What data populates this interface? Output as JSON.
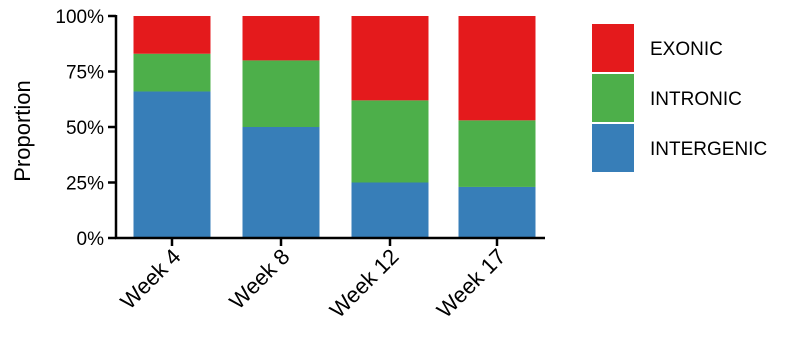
{
  "chart_data": {
    "type": "bar",
    "stacked": true,
    "categories": [
      "Week 4",
      "Week 8",
      "Week 12",
      "Week 17"
    ],
    "series": [
      {
        "name": "INTERGENIC",
        "values": [
          66,
          50,
          25,
          23
        ],
        "color": "#377eb8"
      },
      {
        "name": "INTRONIC",
        "values": [
          17,
          30,
          37,
          30
        ],
        "color": "#4daf4a"
      },
      {
        "name": "EXONIC",
        "values": [
          17,
          20,
          38,
          47
        ],
        "color": "#e41a1c"
      }
    ],
    "legend_order": [
      "EXONIC",
      "INTRONIC",
      "INTERGENIC"
    ],
    "legend_position": "right",
    "ylabel": "Proportion",
    "xlabel": "",
    "ylim": [
      0,
      100
    ],
    "yticks": [
      0,
      25,
      50,
      75,
      100
    ],
    "ytick_labels": [
      "0%",
      "25%",
      "50%",
      "75%",
      "100%"
    ],
    "grid": false
  }
}
